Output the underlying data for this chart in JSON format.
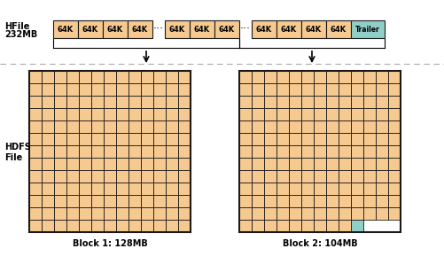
{
  "hfile_label_line1": "HFile",
  "hfile_label_line2": "232MB",
  "hdfs_label": "HDFS\nFile",
  "block1_label": "Block 1: 128MB",
  "block2_label": "Block 2: 104MB",
  "hfile_blocks_color": "#F5C990",
  "trailer_color": "#90CFC8",
  "grid_outline": "#1a1a1a",
  "bg_color": "#ffffff",
  "text_color": "#000000",
  "dashed_line_color": "#aaaaaa",
  "block1_cols": 13,
  "block1_rows": 13,
  "block2_cols": 13,
  "block2_rows": 13,
  "block2_trailer_row": 12,
  "block2_trailer_col": 9,
  "hfile_box_labels": [
    "64K",
    "64K",
    "64K",
    "64K",
    "...",
    "64K",
    "64K",
    "64K",
    "...",
    "64K",
    "64K",
    "64K",
    "64K",
    "Trailer"
  ],
  "hfile_box_colors": [
    "#F5C990",
    "#F5C990",
    "#F5C990",
    "#F5C990",
    "none",
    "#F5C990",
    "#F5C990",
    "#F5C990",
    "none",
    "#F5C990",
    "#F5C990",
    "#F5C990",
    "#F5C990",
    "#90CFC8"
  ],
  "fig_w": 5.01,
  "fig_h": 3.07,
  "dpi": 100
}
